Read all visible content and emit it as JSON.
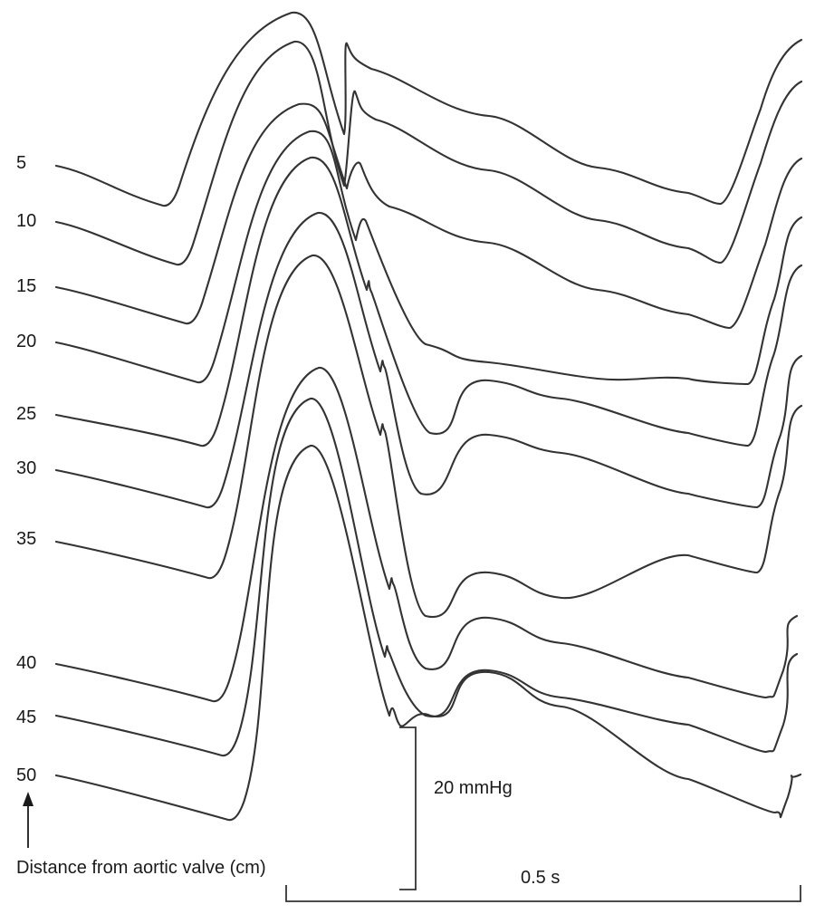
{
  "chart_data": {
    "type": "line",
    "title": "",
    "series_label_title": "Distance from aortic valve (cm)",
    "series": [
      {
        "name": "5",
        "distance_cm": 5
      },
      {
        "name": "10",
        "distance_cm": 10
      },
      {
        "name": "15",
        "distance_cm": 15
      },
      {
        "name": "20",
        "distance_cm": 20
      },
      {
        "name": "25",
        "distance_cm": 25
      },
      {
        "name": "30",
        "distance_cm": 30
      },
      {
        "name": "35",
        "distance_cm": 35
      },
      {
        "name": "40",
        "distance_cm": 40
      },
      {
        "name": "45",
        "distance_cm": 45
      },
      {
        "name": "50",
        "distance_cm": 50
      }
    ],
    "pressure_scale_bar": "20 mmHg",
    "time_scale_bar": "0.5 s",
    "grid": false,
    "legend": "left, one label per trace"
  },
  "colors": {
    "trace": "#333333",
    "text": "#1a1a1a",
    "background": "#ffffff"
  },
  "icons": {
    "arrow": "arrow-up-icon"
  }
}
